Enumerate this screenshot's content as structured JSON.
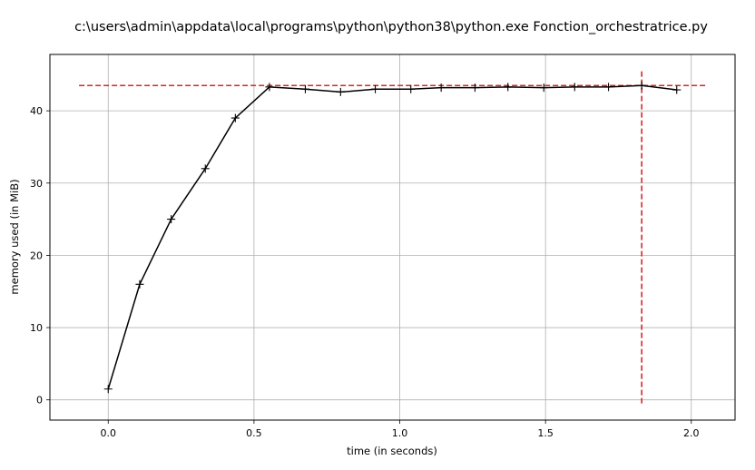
{
  "chart_data": {
    "type": "line",
    "title": "c:\\users\\admin\\appdata\\local\\programs\\python\\python38\\python.exe Fonction_orchestratrice.py",
    "xlabel": "time (in seconds)",
    "ylabel": "memory used (in MiB)",
    "xlim": [
      -0.2,
      2.15
    ],
    "ylim": [
      -2.8,
      47.8
    ],
    "x_ticks": [
      0.0,
      0.5,
      1.0,
      1.5,
      2.0
    ],
    "x_tick_labels": [
      "0.0",
      "0.5",
      "1.0",
      "1.5",
      "2.0"
    ],
    "y_ticks": [
      0,
      10,
      20,
      30,
      40
    ],
    "y_tick_labels": [
      "0",
      "10",
      "20",
      "30",
      "40"
    ],
    "grid": true,
    "series": [
      {
        "marker": "+",
        "color": "#000000",
        "x": [
          0.0,
          0.108,
          0.216,
          0.333,
          0.436,
          0.553,
          0.676,
          0.797,
          0.916,
          1.038,
          1.142,
          1.258,
          1.371,
          1.494,
          1.6,
          1.716,
          1.83,
          1.95
        ],
        "y": [
          1.5,
          16.0,
          25.0,
          32.0,
          39.0,
          43.3,
          43.0,
          42.6,
          43.0,
          43.0,
          43.2,
          43.2,
          43.3,
          43.2,
          43.3,
          43.3,
          43.5,
          42.9
        ]
      }
    ],
    "peak_line": {
      "color": "#d62728",
      "style": "dashed",
      "y": 43.5,
      "x_range": [
        -0.1,
        2.05
      ]
    },
    "peak_time_line": {
      "color": "#d62728",
      "style": "dashed",
      "x": 1.83,
      "y_range": [
        -0.5,
        45.7
      ]
    }
  }
}
